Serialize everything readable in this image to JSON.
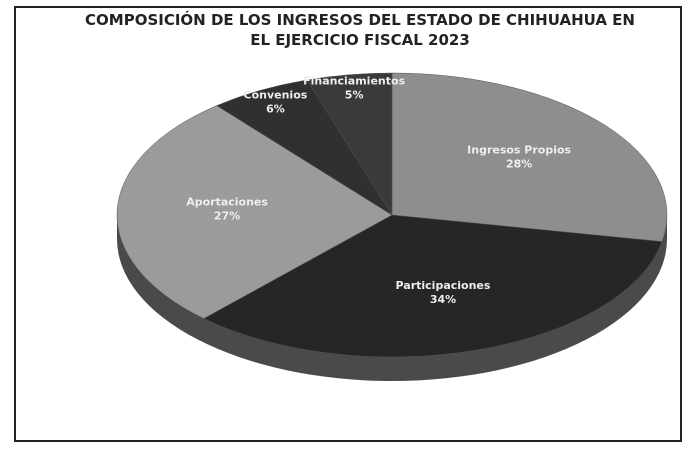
{
  "chart_data": {
    "type": "pie",
    "title": "COMPOSICIÓN DE LOS INGRESOS DEL ESTADO DE CHIHUAHUA EN EL EJERCICIO FISCAL 2023",
    "categories": [
      "Ingresos Propios",
      "Participaciones",
      "Aportaciones",
      "Convenios",
      "Financiamientos"
    ],
    "values": [
      28,
      34,
      27,
      6,
      5
    ],
    "value_labels": [
      "28%",
      "34%",
      "27%",
      "6%",
      "5%"
    ],
    "colors": [
      "#8e8e8e",
      "#262626",
      "#9b9b9b",
      "#303030",
      "#3a3a3a"
    ]
  }
}
